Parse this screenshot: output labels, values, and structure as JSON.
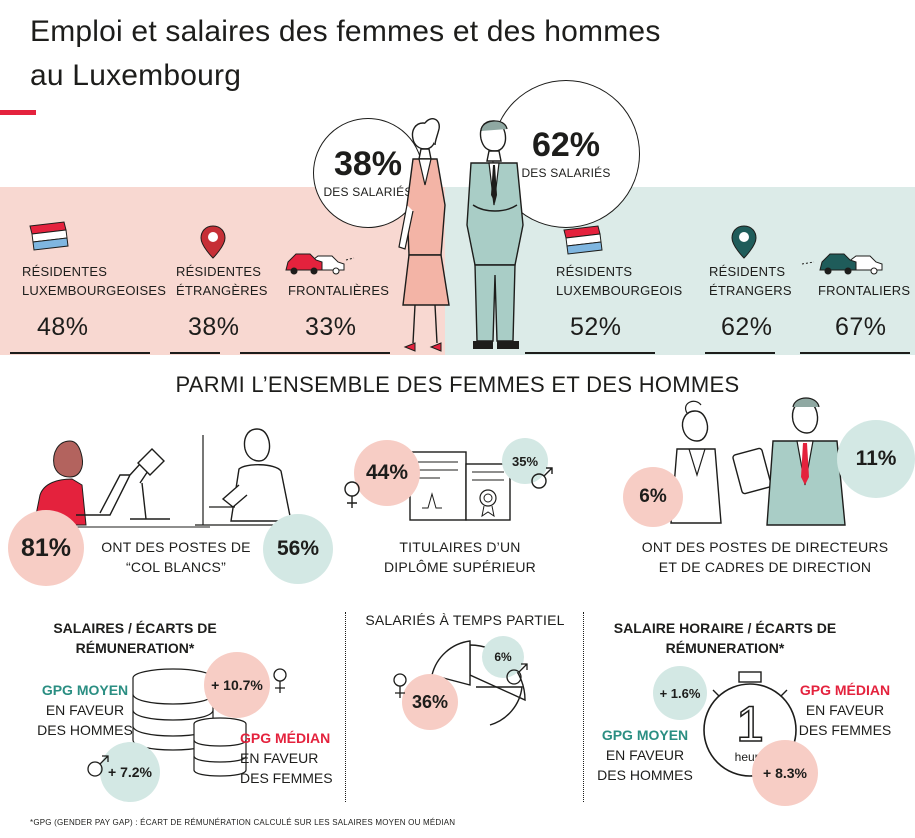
{
  "header": {
    "title_line1": "Emploi et salaires des femmes et des hommes",
    "title_line2": "au Luxembourg"
  },
  "colors": {
    "pink_band": "#f8d8d1",
    "teal_band": "#dcebe8",
    "accent_red": "#e4223d",
    "teal_text": "#2a8e82",
    "pink_circle": "#f7cdc5",
    "teal_circle": "#d3e8e4"
  },
  "top": {
    "women": {
      "pct": "38%",
      "label": "DES SALARIÉS"
    },
    "men": {
      "pct": "62%",
      "label": "DES SALARIÉS"
    },
    "women_categories": [
      {
        "icon": "flag-icon",
        "line1": "RÉSIDENTES",
        "line2": "LUXEMBOURGEOISES",
        "value": "48%"
      },
      {
        "icon": "map-pin-icon",
        "line1": "RÉSIDENTES",
        "line2": "ÉTRANGÈRES",
        "value": "38%"
      },
      {
        "icon": "car-icon",
        "line1": "",
        "line2": "FRONTALIÈRES",
        "value": "33%"
      }
    ],
    "men_categories": [
      {
        "icon": "flag-icon",
        "line1": "RÉSIDENTS",
        "line2": "LUXEMBOURGEOIS",
        "value": "52%"
      },
      {
        "icon": "map-pin-icon",
        "line1": "RÉSIDENTS",
        "line2": "ÉTRANGERS",
        "value": "62%"
      },
      {
        "icon": "car-icon",
        "line1": "",
        "line2": "FRONTALIERS",
        "value": "67%"
      }
    ]
  },
  "section": {
    "heading": "PARMI L’ENSEMBLE DES FEMMES ET DES HOMMES"
  },
  "white_collar": {
    "women": "81%",
    "men": "56%",
    "caption_line1": "ONT DES POSTES DE",
    "caption_line2": "“COL BLANCS”"
  },
  "diploma": {
    "women": "44%",
    "men": "35%",
    "caption_line1": "TITULAIRES D’UN",
    "caption_line2": "DIPLÔME SUPÉRIEUR"
  },
  "directors": {
    "women": "6%",
    "men": "11%",
    "caption_line1": "ONT DES POSTES DE DIRECTEURS",
    "caption_line2": "ET DE CADRES DE DIRECTION"
  },
  "salaries": {
    "title_line1": "SALAIRES / ÉCARTS DE",
    "title_line2": "RÉMUNERATION*",
    "mean_label": "GPG MOYEN",
    "mean_desc_line1": "EN FAVEUR",
    "mean_desc_line2": "DES HOMMES",
    "mean_value": "+ 7.2%",
    "median_value": "+ 10.7%",
    "median_label": "GPG MÉDIAN",
    "median_desc_line1": "EN FAVEUR",
    "median_desc_line2": "DES FEMMES"
  },
  "part_time": {
    "title": "SALARIÉS À TEMPS PARTIEL",
    "women": "36%",
    "men": "6%"
  },
  "hourly": {
    "title_line1": "SALAIRE HORAIRE / ÉCARTS DE",
    "title_line2": "RÉMUNERATION*",
    "mean_value": "+ 1.6%",
    "mean_label": "GPG MOYEN",
    "mean_desc_line1": "EN FAVEUR",
    "mean_desc_line2": "DES HOMMES",
    "median_label": "GPG MÉDIAN",
    "median_desc_line1": "EN FAVEUR",
    "median_desc_line2": "DES FEMMES",
    "median_value": "+ 8.3%",
    "clock_digit": "1",
    "clock_unit": "heure"
  },
  "footnote": "*GPG (GENDER PAY GAP) : ÉCART DE RÉMUNÉRATION CALCULÉ SUR LES SALAIRES MOYEN OU MÉDIAN"
}
